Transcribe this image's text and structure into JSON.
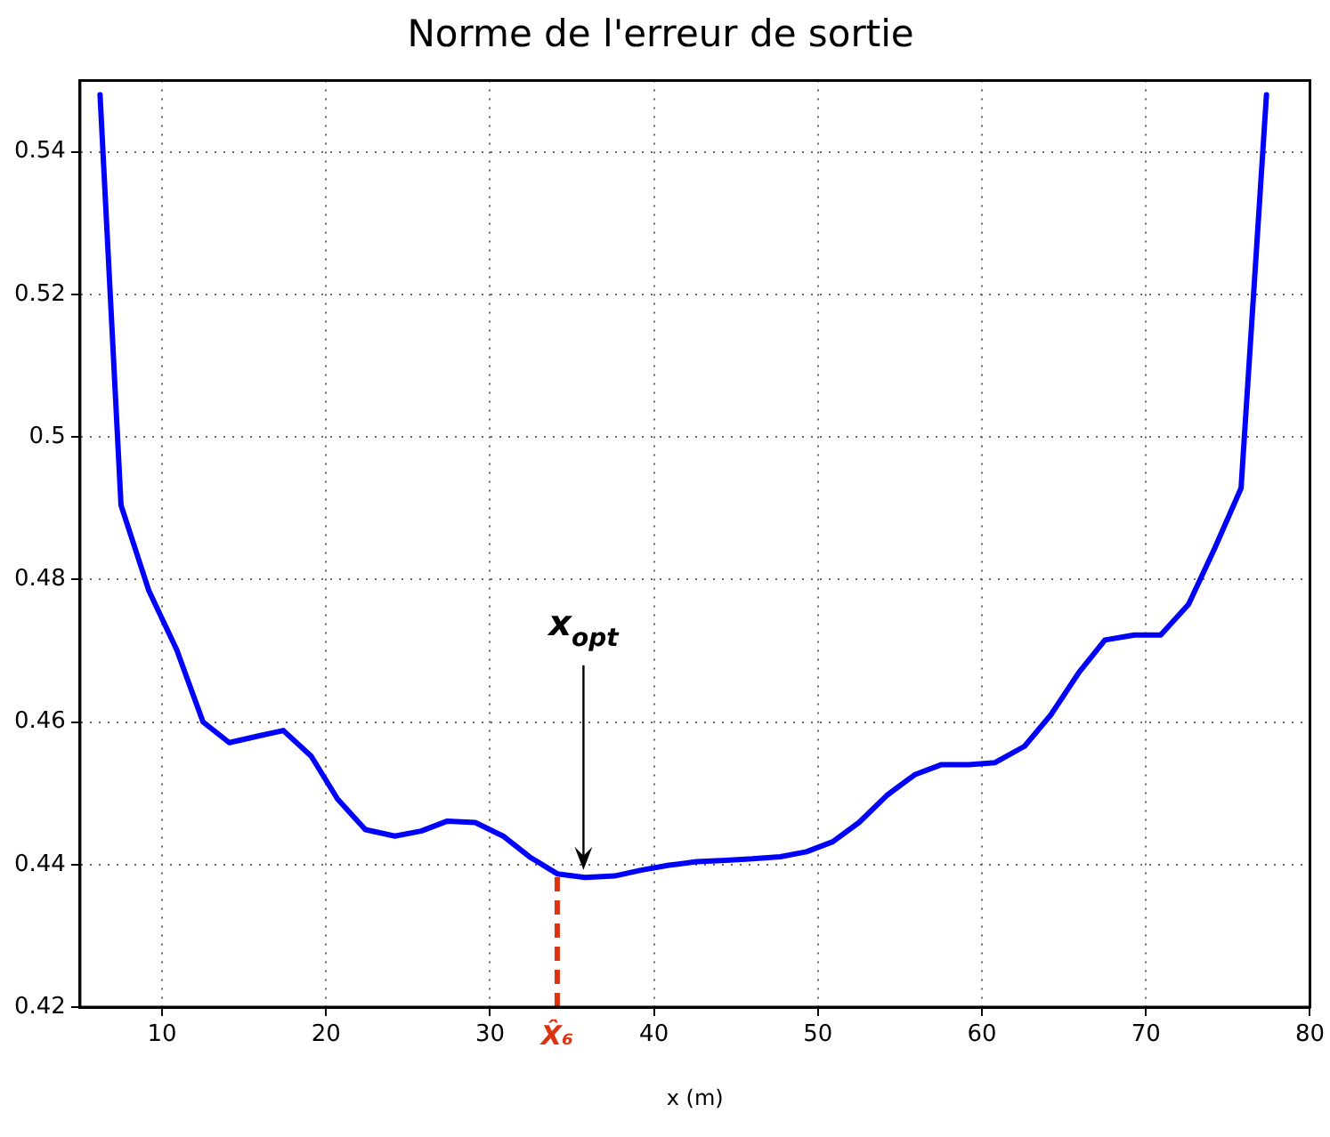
{
  "chart_data": {
    "type": "line",
    "title": "Norme de l'erreur de sortie",
    "xlabel": "x (m)",
    "xlim": [
      5,
      80
    ],
    "xticks": [
      10,
      20,
      30,
      40,
      50,
      60,
      70,
      80
    ],
    "ylim": [
      0.42,
      0.55
    ],
    "yticks": [
      0.42,
      0.44,
      0.46,
      0.48,
      0.5,
      0.52,
      0.54
    ],
    "grid": true,
    "legend": false,
    "marker": "none",
    "line_style": "solid",
    "series": [
      {
        "color": "#0000ff",
        "x": [
          6.22,
          7.5,
          9.2,
          10.9,
          12.5,
          14.1,
          16.0,
          17.4,
          19.1,
          20.7,
          22.4,
          24.2,
          25.8,
          27.4,
          29.1,
          30.8,
          32.4,
          34.1,
          35.8,
          37.6,
          39.2,
          40.9,
          42.6,
          44.4,
          46.0,
          47.7,
          49.3,
          50.9,
          52.5,
          54.2,
          55.9,
          57.5,
          59.2,
          60.8,
          62.6,
          64.2,
          65.9,
          67.5,
          69.3,
          70.9,
          72.6,
          74.2,
          75.8,
          77.35
        ],
        "values": [
          0.548,
          0.4904,
          0.4784,
          0.4701,
          0.46,
          0.4571,
          0.4581,
          0.4588,
          0.4552,
          0.4492,
          0.4449,
          0.444,
          0.4447,
          0.4461,
          0.4459,
          0.444,
          0.4411,
          0.4387,
          0.4382,
          0.4384,
          0.4392,
          0.4399,
          0.4404,
          0.4406,
          0.4408,
          0.4411,
          0.4418,
          0.4432,
          0.4459,
          0.4497,
          0.4526,
          0.454,
          0.454,
          0.4543,
          0.4566,
          0.461,
          0.4669,
          0.4715,
          0.4722,
          0.4722,
          0.4765,
          0.4844,
          0.4928,
          0.548
        ]
      }
    ],
    "ref_lines": [
      {
        "axis": "x",
        "value": 34.1,
        "label": "X̂₆",
        "color": "#dd3311",
        "line_style": "dashed"
      }
    ],
    "annotations": [
      {
        "text": "x$_{opt}$",
        "x": 35.7,
        "y": 0.4385
      }
    ]
  }
}
